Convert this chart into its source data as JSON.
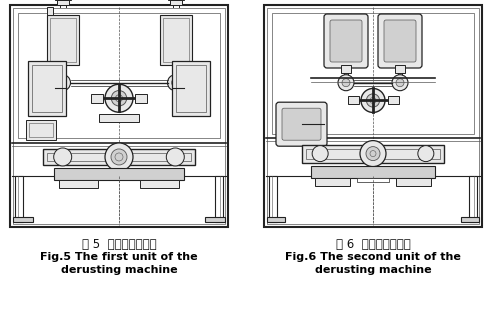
{
  "fig_width": 5.04,
  "fig_height": 3.3,
  "dpi": 100,
  "bg_color": "#ffffff",
  "caption_left_chinese": "图 5  第一单元除锈机",
  "caption_left_english_line1": "Fig.5 The first unit of the",
  "caption_left_english_line2": "derusting machine",
  "caption_right_chinese": "图 6  第二单元除锈机",
  "caption_right_english_line1": "Fig.6 The second unit of the",
  "caption_right_english_line2": "derusting machine",
  "lc": "#222222",
  "mc": "#555555",
  "fc": "#ffffff",
  "fc2": "#e8e8e8",
  "fc3": "#d0d0d0"
}
